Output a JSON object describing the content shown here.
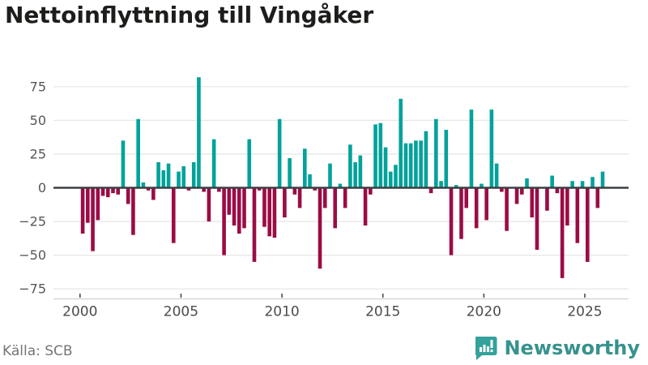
{
  "title": "Nettoinflyttning till Vingåker",
  "source": "Källa: SCB",
  "brand": {
    "name": "Newsworthy",
    "color": "#37928e",
    "icon": "bar-chart-speech-bubble"
  },
  "chart_data": {
    "type": "bar",
    "title": "Nettoinflyttning till Vingåker",
    "xlabel": "",
    "ylabel": "",
    "frequency": "quarterly",
    "first_period": "2000-Q1",
    "last_period": "2025-Q4",
    "values": [
      -34,
      -26,
      -47,
      -24,
      -6,
      -7,
      -4,
      -5,
      35,
      -12,
      -35,
      51,
      4,
      -2,
      -9,
      19,
      13,
      18,
      -41,
      12,
      16,
      -2,
      19,
      82,
      -3,
      -25,
      36,
      -3,
      -50,
      -20,
      -28,
      -34,
      -30,
      36,
      -55,
      -2,
      -29,
      -36,
      -37,
      51,
      -22,
      22,
      -5,
      -15,
      29,
      10,
      -2,
      -60,
      -15,
      18,
      -30,
      3,
      -15,
      32,
      19,
      24,
      -28,
      -5,
      47,
      48,
      30,
      12,
      17,
      66,
      33,
      33,
      35,
      35,
      42,
      -4,
      51,
      5,
      43,
      -50,
      2,
      -38,
      -15,
      58,
      -30,
      3,
      -24,
      58,
      18,
      -3,
      -32,
      0,
      -12,
      -5,
      7,
      -22,
      -46,
      0,
      -17,
      9,
      -4,
      -67,
      -28,
      5,
      -41,
      5,
      -55,
      8,
      -15,
      12
    ],
    "x_ticks": [
      2000,
      2005,
      2010,
      2015,
      2020,
      2025
    ],
    "y_ticks": [
      75,
      50,
      25,
      0,
      -25,
      -50,
      -75
    ],
    "ylim": [
      -75,
      85
    ],
    "grid": true,
    "legend": false,
    "colors": {
      "positive": "#00a29b",
      "negative": "#9b0c45",
      "zero_line": "#3c4043",
      "grid_line": "#e7e7e7",
      "axis_line": "#cfd0d2"
    }
  }
}
